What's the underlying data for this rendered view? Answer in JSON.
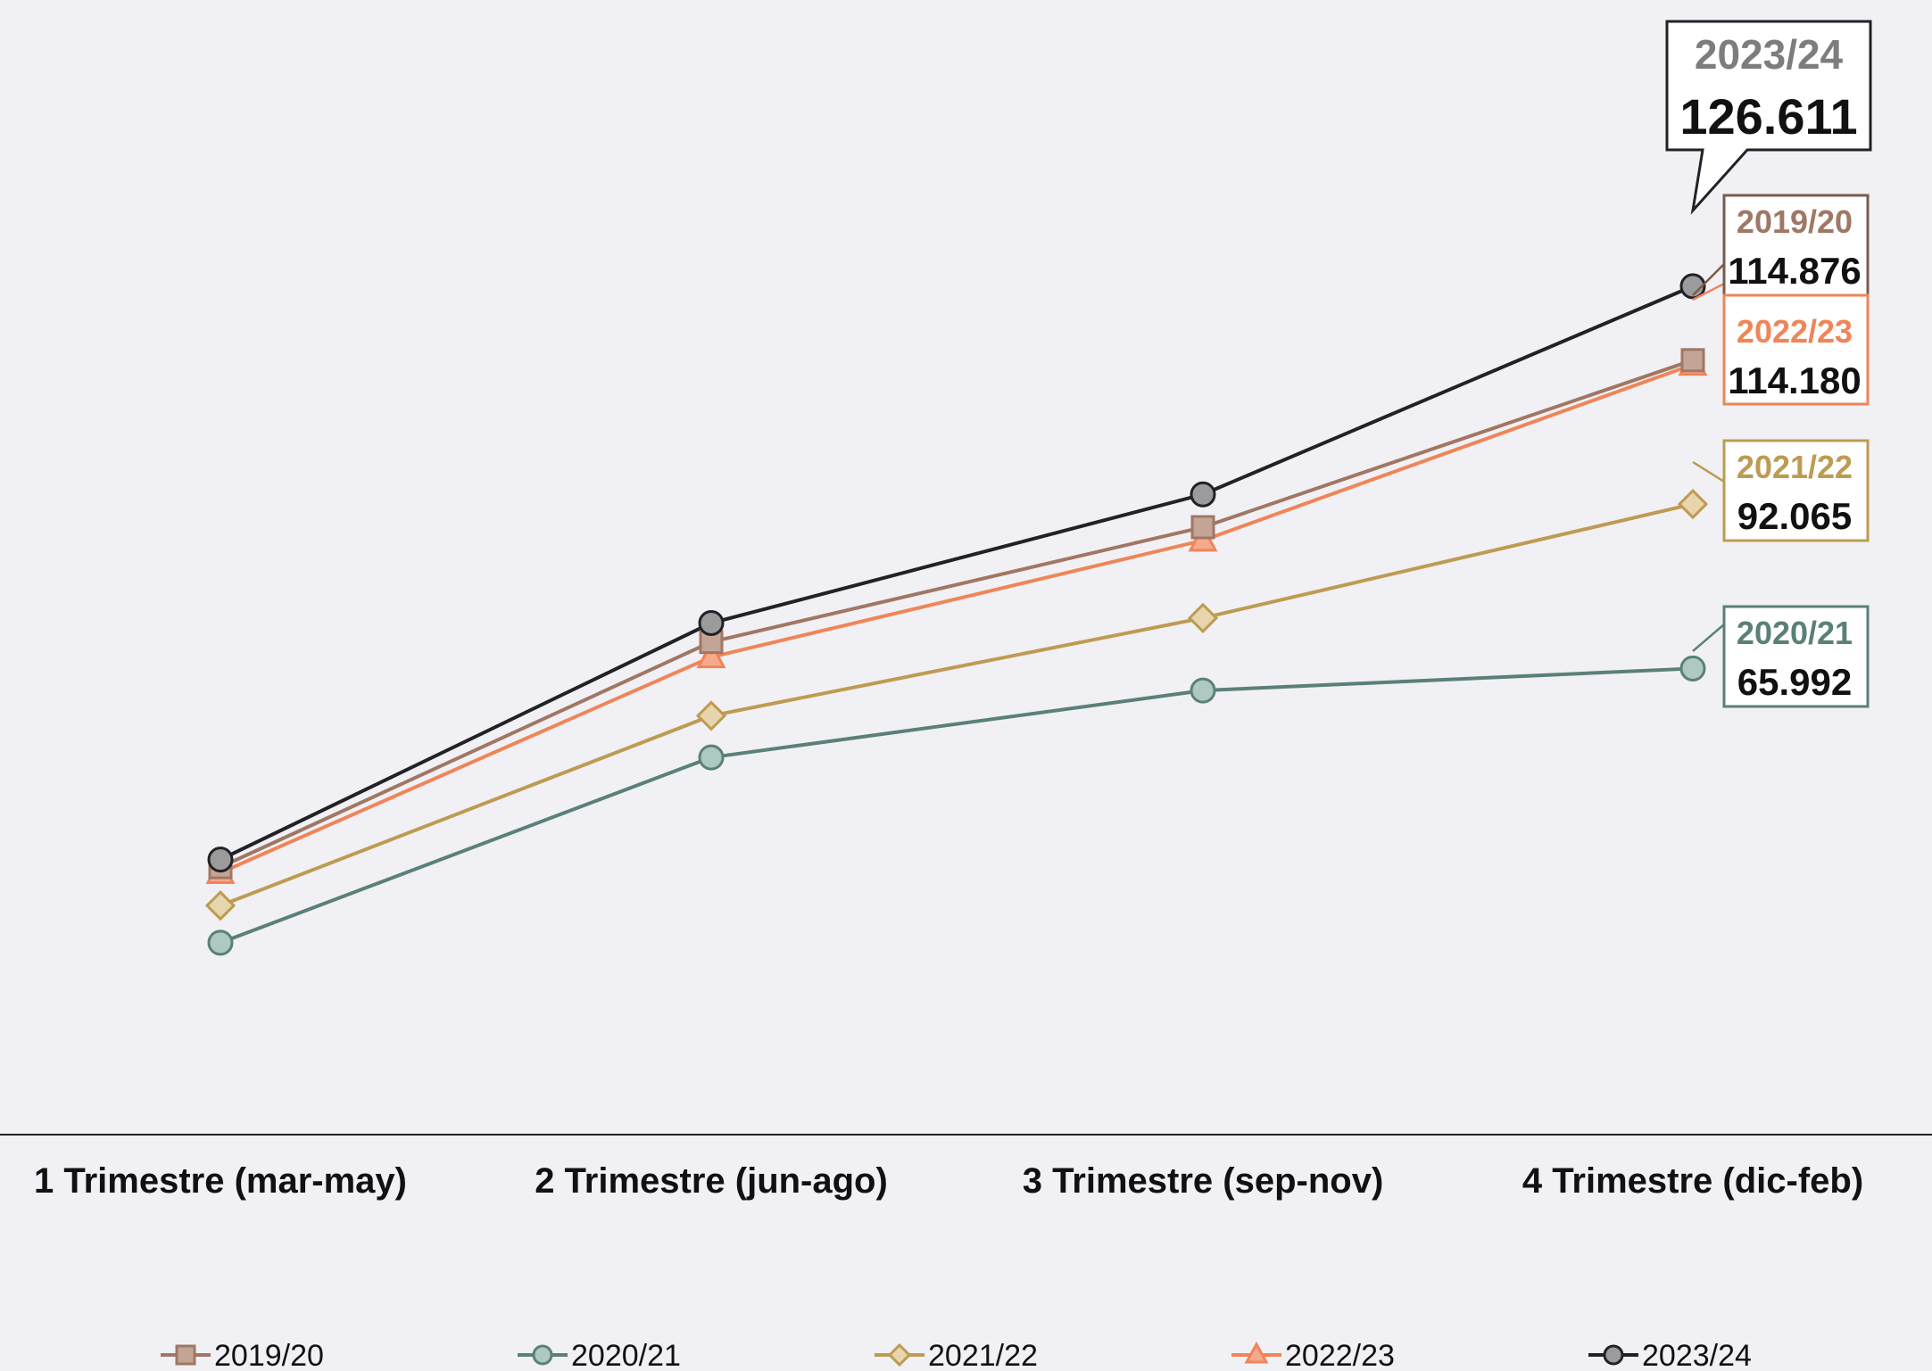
{
  "chart_data": {
    "type": "line",
    "title": "",
    "xlabel": "",
    "ylabel": "",
    "categories": [
      "1 Trimestre (mar-may)",
      "2 Trimestre (jun-ago)",
      "3 Trimestre (sep-nov)",
      "4 Trimestre (dic-feb)"
    ],
    "ylim": [
      0,
      130000
    ],
    "grid": false,
    "legend_position": "bottom",
    "series": [
      {
        "name": "2019/20",
        "values": [
          34500,
          70200,
          88400,
          114876
        ],
        "color": "#a07764",
        "marker": "square",
        "value_label": "114.876"
      },
      {
        "name": "2020/21",
        "values": [
          22500,
          51900,
          62500,
          65992
        ],
        "color": "#5a8078",
        "marker": "circle",
        "value_label": "65.992"
      },
      {
        "name": "2021/22",
        "values": [
          28400,
          58500,
          74000,
          92065
        ],
        "color": "#bd9b52",
        "marker": "diamond",
        "value_label": "92.065"
      },
      {
        "name": "2022/23",
        "values": [
          33600,
          67800,
          86300,
          114180
        ],
        "color": "#ef8558",
        "marker": "triangle",
        "value_label": "114.180"
      },
      {
        "name": "2023/24",
        "values": [
          35700,
          73200,
          93600,
          126611
        ],
        "color": "#222226",
        "marker": "circle-gray",
        "value_label": "126.611"
      }
    ]
  },
  "callouts": {
    "s2023": {
      "year": "2023/24",
      "value": "126.611",
      "year_color": "#7d7d7d",
      "border_color": "#222226"
    },
    "s2019": {
      "year": "2019/20",
      "value": "114.876",
      "year_color": "#a07764",
      "border_color": "#7a5b4b"
    },
    "s2022": {
      "year": "2022/23",
      "value": "114.180",
      "year_color": "#ef8558",
      "border_color": "#ef8558"
    },
    "s2021": {
      "year": "2021/22",
      "value": "92.065",
      "year_color": "#bd9b52",
      "border_color": "#bd9b52"
    },
    "s2020": {
      "year": "2020/21",
      "value": "65.992",
      "year_color": "#5a8078",
      "border_color": "#5a8078"
    }
  }
}
